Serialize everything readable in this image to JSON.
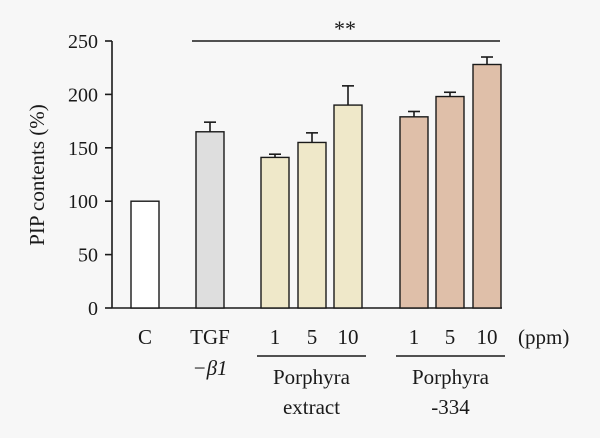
{
  "chart_data": {
    "type": "bar",
    "ylabel": "PIP contents (%)",
    "ylim": [
      0,
      250
    ],
    "yticks": [
      "0",
      "50",
      "100",
      "150",
      "200",
      "250"
    ],
    "grid": false,
    "unit_label": "(ppm)",
    "significance_label": "**",
    "categories": [
      {
        "label": "C",
        "label2": "",
        "value": 100,
        "error": 0,
        "color": "#ffffff"
      },
      {
        "label": "TGF",
        "label2": "−β1",
        "value": 165,
        "error": 9,
        "color": "#dedede"
      },
      {
        "label": "1",
        "label2": "",
        "value": 141,
        "error": 3,
        "color": "#efe8c9"
      },
      {
        "label": "5",
        "label2": "",
        "value": 155,
        "error": 9,
        "color": "#efe8c9"
      },
      {
        "label": "10",
        "label2": "",
        "value": 190,
        "error": 18,
        "color": "#efe8c9"
      },
      {
        "label": "1",
        "label2": "",
        "value": 179,
        "error": 5,
        "color": "#dfbfa9"
      },
      {
        "label": "5",
        "label2": "",
        "value": 198,
        "error": 4,
        "color": "#dfbfa9"
      },
      {
        "label": "10",
        "label2": "",
        "value": 228,
        "error": 7,
        "color": "#dfbfa9"
      }
    ],
    "groups": [
      {
        "line1": "Porphyra",
        "line2": "extract",
        "members": [
          2,
          3,
          4
        ]
      },
      {
        "line1": "Porphyra",
        "line2": "-334",
        "members": [
          5,
          6,
          7
        ]
      }
    ]
  }
}
